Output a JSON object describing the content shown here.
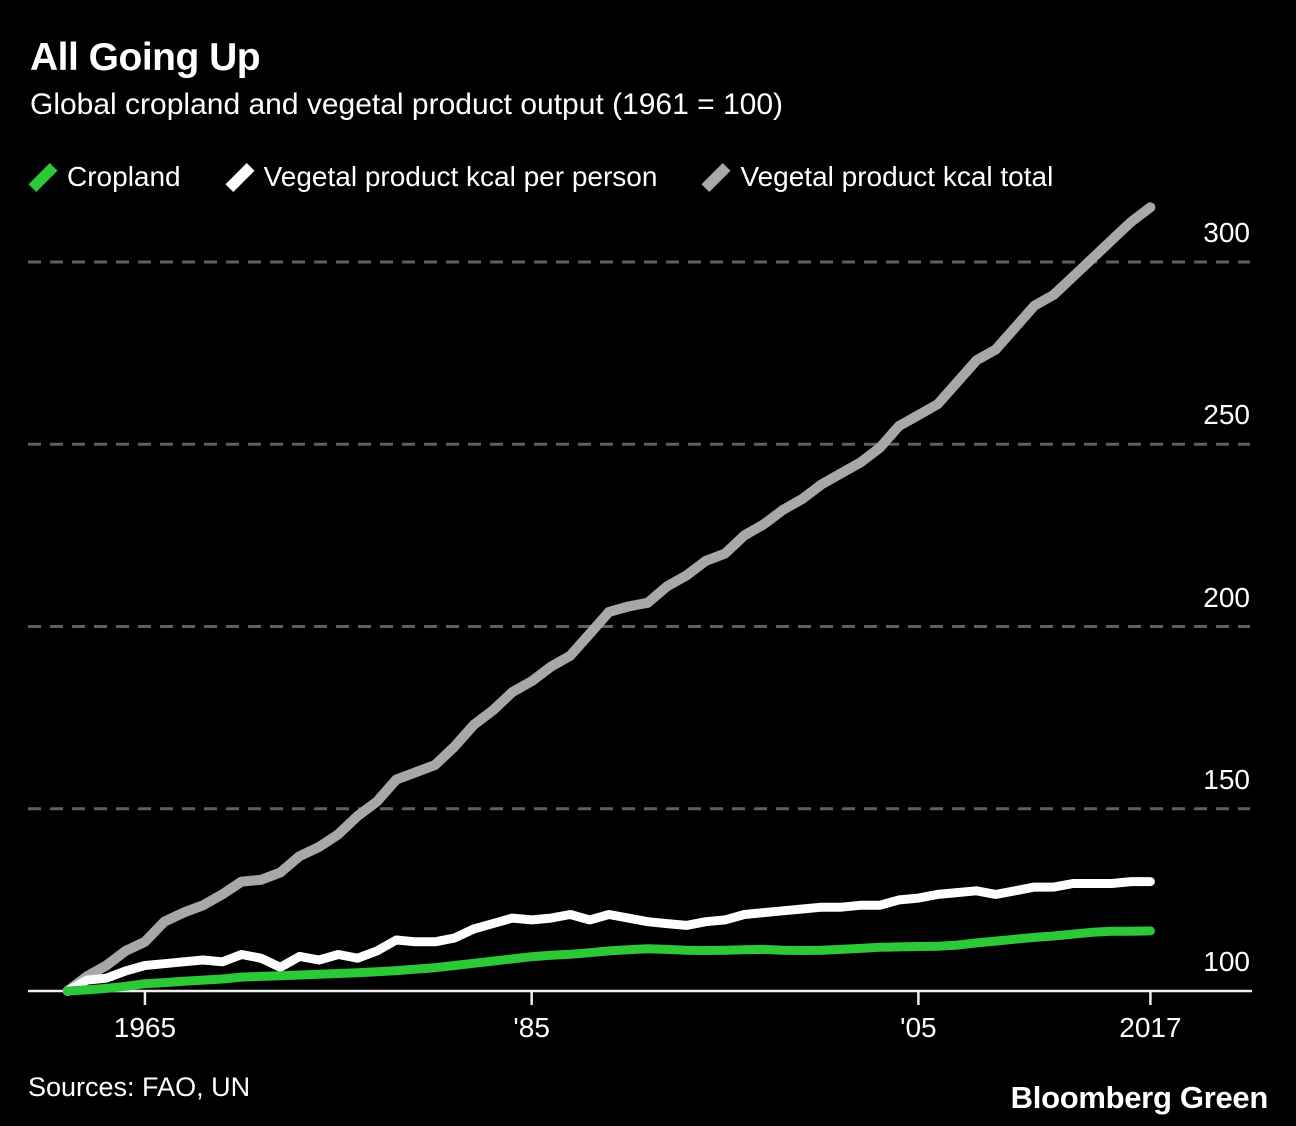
{
  "header": {
    "title": "All Going Up",
    "subtitle": "Global cropland and vegetal product output (1961 = 100)"
  },
  "legend": [
    {
      "label": "Cropland",
      "color": "#2bc938",
      "icon": "slanted-line-swatch"
    },
    {
      "label": "Vegetal product kcal per person",
      "color": "#ffffff",
      "icon": "slanted-line-swatch"
    },
    {
      "label": "Vegetal product kcal total",
      "color": "#a8a8a8",
      "icon": "slanted-line-swatch"
    }
  ],
  "footer": {
    "sources": "Sources: FAO, UN",
    "brand": "Bloomberg Green"
  },
  "colors": {
    "background": "#000000",
    "grid_dashed": "#5f5f5f",
    "axis_line": "#eeeeee",
    "text": "#ffffff",
    "cropland": "#2bc938",
    "kcal_per_person": "#ffffff",
    "kcal_total": "#a8a8a8"
  },
  "chart_data": {
    "type": "line",
    "title": "All Going Up",
    "subtitle": "Global cropland and vegetal product output (1961 = 100)",
    "index_note": "1961 = 100",
    "grid": "dashed-horizontal",
    "legend_position": "top-left",
    "ylim": [
      100,
      320
    ],
    "y_ticks": [
      100,
      150,
      200,
      250,
      300
    ],
    "x_ticks": [
      {
        "value": 1965,
        "label": "1965"
      },
      {
        "value": 1985,
        "label": "'85"
      },
      {
        "value": 2005,
        "label": "'05"
      },
      {
        "value": 2017,
        "label": "2017"
      }
    ],
    "years": [
      1961,
      1962,
      1963,
      1964,
      1965,
      1966,
      1967,
      1968,
      1969,
      1970,
      1971,
      1972,
      1973,
      1974,
      1975,
      1976,
      1977,
      1978,
      1979,
      1980,
      1981,
      1982,
      1983,
      1984,
      1985,
      1986,
      1987,
      1988,
      1989,
      1990,
      1991,
      1992,
      1993,
      1994,
      1995,
      1996,
      1997,
      1998,
      1999,
      2000,
      2001,
      2002,
      2003,
      2004,
      2005,
      2006,
      2007,
      2008,
      2009,
      2010,
      2011,
      2012,
      2013,
      2014,
      2015,
      2016,
      2017
    ],
    "series": [
      {
        "name": "Cropland",
        "color": "#2bc938",
        "values": [
          100,
          100.3,
          100.7,
          101.3,
          102,
          102.3,
          102.7,
          103,
          103.3,
          103.8,
          104,
          104.2,
          104.4,
          104.6,
          104.8,
          105,
          105.3,
          105.6,
          106,
          106.4,
          107,
          107.6,
          108.2,
          108.8,
          109.4,
          109.8,
          110.1,
          110.5,
          111,
          111.3,
          111.6,
          111.4,
          111.2,
          111.1,
          111.2,
          111.3,
          111.4,
          111.2,
          111.1,
          111.2,
          111.4,
          111.7,
          112,
          112.1,
          112.2,
          112.3,
          112.6,
          113.2,
          113.7,
          114.2,
          114.7,
          115.1,
          115.6,
          116.1,
          116.4,
          116.4,
          116.5
        ]
      },
      {
        "name": "Vegetal product kcal per person",
        "color": "#ffffff",
        "values": [
          100,
          103,
          103.5,
          105.5,
          107,
          107.5,
          108,
          108.5,
          108,
          110,
          109,
          106.5,
          109.5,
          108.5,
          110,
          109,
          111,
          114,
          113.5,
          113.5,
          114.5,
          117,
          118.5,
          120,
          119.5,
          120,
          121,
          119.5,
          121,
          120,
          119,
          118.5,
          118,
          119,
          119.5,
          121,
          121.5,
          122,
          122.5,
          123,
          123,
          123.5,
          123.5,
          125,
          125.5,
          126.5,
          127,
          127.5,
          126.5,
          127.5,
          128.5,
          128.5,
          129.5,
          129.5,
          129.5,
          130,
          130
        ]
      },
      {
        "name": "Vegetal product kcal total",
        "color": "#a8a8a8",
        "values": [
          100,
          104,
          107,
          111,
          113.5,
          119,
          121.5,
          123.5,
          126.5,
          130,
          130.5,
          132.5,
          137,
          139.5,
          143,
          148,
          152,
          158,
          160,
          162,
          167,
          173,
          177,
          182,
          185,
          189,
          192,
          198,
          204,
          205.5,
          206.5,
          211,
          214,
          218,
          220,
          225,
          228,
          232,
          235,
          239,
          242,
          245,
          249,
          255,
          258,
          261,
          267,
          273,
          276,
          282,
          288,
          291,
          296,
          301,
          306,
          311,
          315
        ]
      }
    ]
  }
}
